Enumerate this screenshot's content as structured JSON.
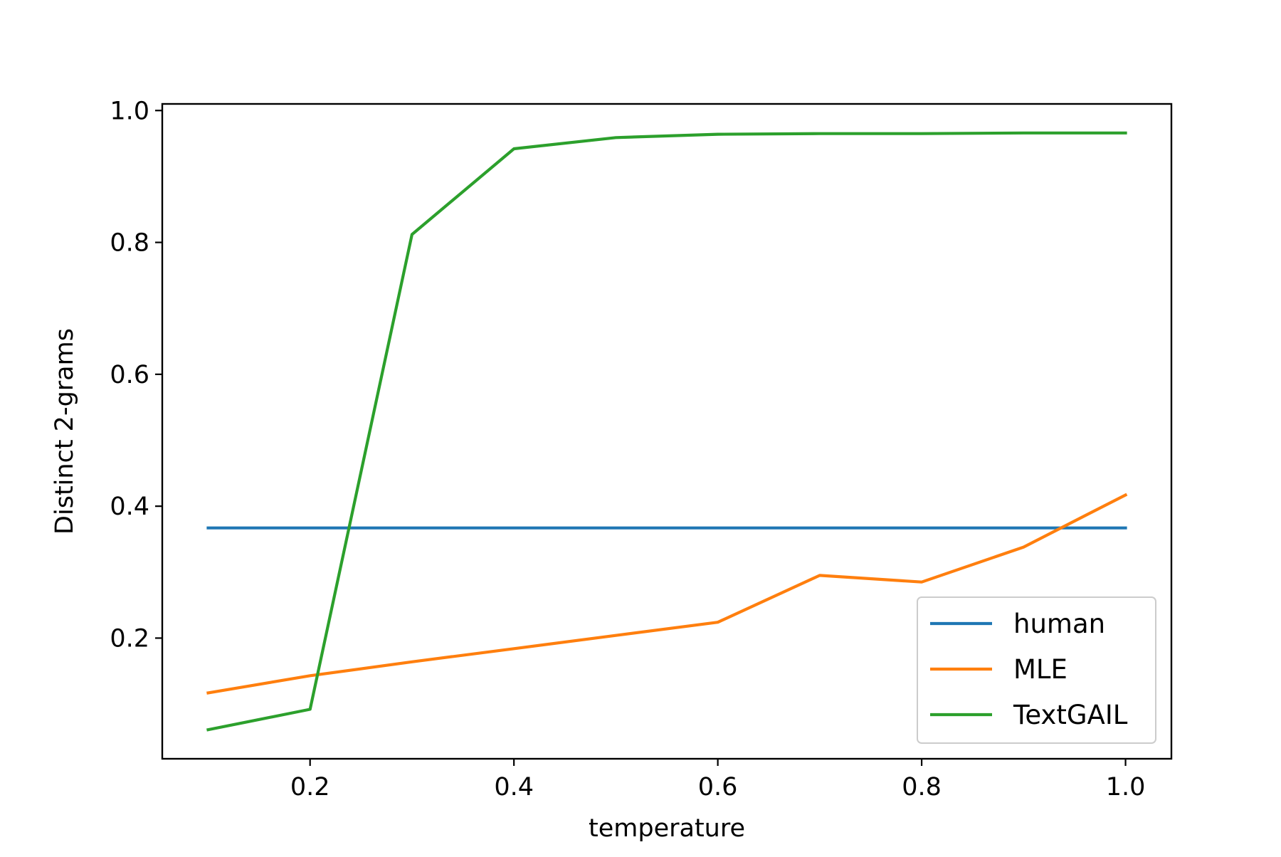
{
  "chart_data": {
    "type": "line",
    "xlabel": "temperature",
    "ylabel": "Distinct 2-grams",
    "xlim": [
      0.055,
      1.045
    ],
    "ylim": [
      0.017,
      1.01
    ],
    "xticks": [
      0.2,
      0.4,
      0.6,
      0.8,
      1.0
    ],
    "xtick_labels": [
      "0.2",
      "0.4",
      "0.6",
      "0.8",
      "1.0"
    ],
    "yticks": [
      0.2,
      0.4,
      0.6,
      0.8,
      1.0
    ],
    "ytick_labels": [
      "0.2",
      "0.4",
      "0.6",
      "0.8",
      "1.0"
    ],
    "grid": false,
    "legend_position": "lower-right",
    "series": [
      {
        "name": "human",
        "color": "#1f77b4",
        "x": [
          0.1,
          0.2,
          0.3,
          0.4,
          0.5,
          0.6,
          0.7,
          0.8,
          0.9,
          1.0
        ],
        "y": [
          0.367,
          0.367,
          0.367,
          0.367,
          0.367,
          0.367,
          0.367,
          0.367,
          0.367,
          0.367
        ]
      },
      {
        "name": "MLE",
        "color": "#ff7f0e",
        "x": [
          0.1,
          0.2,
          0.3,
          0.4,
          0.5,
          0.6,
          0.7,
          0.8,
          0.9,
          1.0
        ],
        "y": [
          0.117,
          0.143,
          0.164,
          0.184,
          0.204,
          0.224,
          0.295,
          0.285,
          0.338,
          0.417
        ]
      },
      {
        "name": "TextGAIL",
        "color": "#2ca02c",
        "x": [
          0.1,
          0.2,
          0.3,
          0.4,
          0.5,
          0.6,
          0.7,
          0.8,
          0.9,
          1.0
        ],
        "y": [
          0.061,
          0.092,
          0.812,
          0.942,
          0.959,
          0.964,
          0.965,
          0.965,
          0.966,
          0.966
        ]
      }
    ]
  }
}
